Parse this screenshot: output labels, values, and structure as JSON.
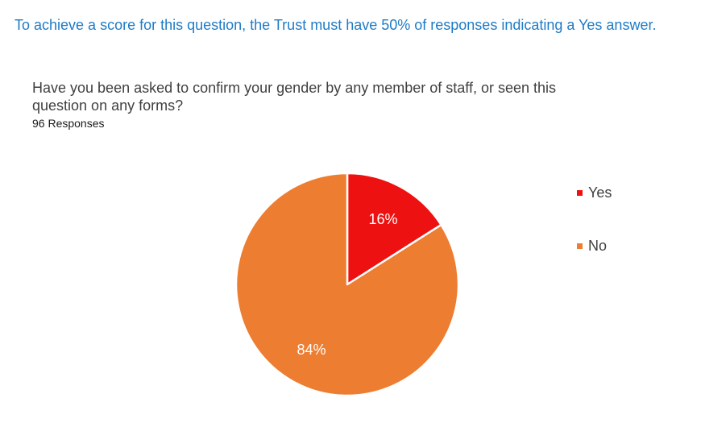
{
  "intro_text": "To achieve a score for this question, the Trust must have 50% of responses indicating a Yes answer.",
  "question_text": "Have you been asked to confirm your gender by any member of staff, or seen this question on any forms?",
  "responses_text": "96 Responses",
  "chart_data": {
    "type": "pie",
    "title": "Have you been asked to confirm your gender by any member of staff, or seen this question on any forms?",
    "subtitle": "96 Responses",
    "categories": [
      "Yes",
      "No"
    ],
    "values": [
      16,
      84
    ],
    "data_labels": [
      "16%",
      "84%"
    ],
    "colors": [
      "#ee1111",
      "#ed7d31"
    ],
    "label_color": "#ffffff",
    "legend_position": "right"
  }
}
